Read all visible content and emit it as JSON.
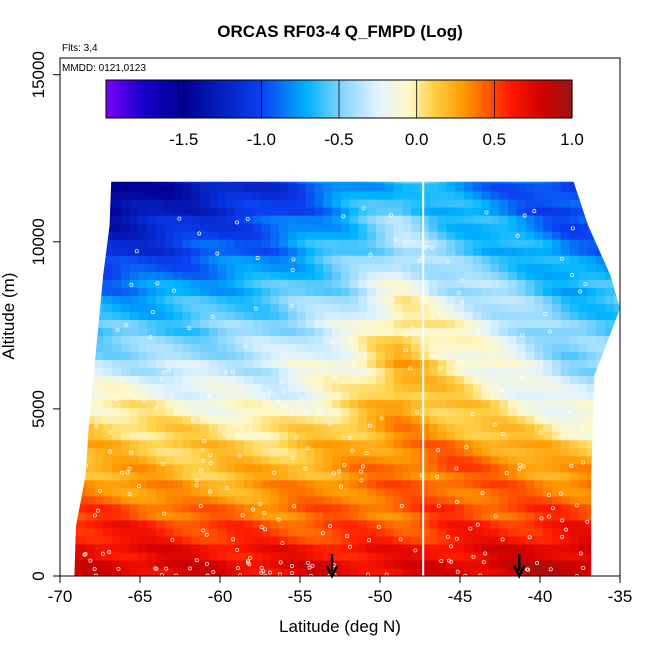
{
  "chart_data": {
    "type": "heatmap",
    "title": "ORCAS RF03-4 Q_FMPD (Log)",
    "subtitle_flights": "Flts: 3,4",
    "subtitle_dates": "MMDD: 0121,0123",
    "xlabel": "Latitude (deg N)",
    "ylabel": "Altitude (m)",
    "xlim": [
      -70,
      -35
    ],
    "ylim": [
      0,
      15500
    ],
    "x_ticks": [
      -70,
      -65,
      -60,
      -55,
      -50,
      -45,
      -40,
      -35
    ],
    "y_ticks": [
      0,
      5000,
      10000,
      15000
    ],
    "grid": false,
    "colorbar": {
      "range": [
        -2.0,
        1.0
      ],
      "ticks": [
        -1.5,
        -1.0,
        -0.5,
        0.0,
        0.5,
        1.0
      ],
      "tick_labels": [
        "-1.5",
        "-1.0",
        "-0.5",
        "0.0",
        "0.5",
        "1.0"
      ],
      "stops": [
        {
          "v": -2.0,
          "color": "#7a00ff"
        },
        {
          "v": -1.75,
          "color": "#1400c8"
        },
        {
          "v": -1.5,
          "color": "#000090"
        },
        {
          "v": -1.0,
          "color": "#0a40f0"
        },
        {
          "v": -0.7,
          "color": "#00b4ff"
        },
        {
          "v": -0.5,
          "color": "#7cd2ff"
        },
        {
          "v": -0.25,
          "color": "#e2f3ff"
        },
        {
          "v": -0.05,
          "color": "#fff9c8"
        },
        {
          "v": 0.1,
          "color": "#ffd24a"
        },
        {
          "v": 0.3,
          "color": "#ff9a00"
        },
        {
          "v": 0.6,
          "color": "#ff1a00"
        },
        {
          "v": 0.8,
          "color": "#d40000"
        },
        {
          "v": 1.0,
          "color": "#9a1414"
        }
      ]
    },
    "profile_bins": {
      "altitude_edges": [
        0,
        1000,
        2000,
        3000,
        4000,
        5000,
        6000,
        7000,
        8000,
        9000,
        10000,
        11000,
        12000
      ],
      "latitude_edges": [
        -69,
        -64,
        -59,
        -54,
        -50,
        -47.3,
        -44,
        -40,
        -36.5
      ],
      "values": [
        [
          0.75,
          0.75,
          0.7,
          0.72,
          0.7,
          0.75,
          0.8,
          0.85
        ],
        [
          0.6,
          0.5,
          0.45,
          0.45,
          0.45,
          0.55,
          0.55,
          0.6
        ],
        [
          0.35,
          0.25,
          0.3,
          0.4,
          0.4,
          0.45,
          0.4,
          0.4
        ],
        [
          0.2,
          0.15,
          0.15,
          0.25,
          0.4,
          0.45,
          0.35,
          0.2
        ],
        [
          0.1,
          0.05,
          0.0,
          0.15,
          0.3,
          0.2,
          0.1,
          -0.05
        ],
        [
          -0.1,
          -0.2,
          -0.25,
          -0.05,
          0.25,
          0.1,
          -0.1,
          -0.3
        ],
        [
          -0.4,
          -0.4,
          -0.3,
          -0.1,
          0.2,
          0.0,
          -0.2,
          -0.45
        ],
        [
          -0.6,
          -0.55,
          -0.45,
          -0.25,
          0.1,
          -0.1,
          -0.3,
          -0.55
        ],
        [
          -0.8,
          -0.7,
          -0.6,
          -0.4,
          -0.1,
          -0.3,
          -0.45,
          -0.65
        ],
        [
          -1.1,
          -0.95,
          -0.8,
          -0.55,
          -0.3,
          -0.5,
          -0.6,
          -0.8
        ],
        [
          -1.3,
          -1.1,
          -0.95,
          -0.65,
          -0.4,
          -0.6,
          -0.75,
          -0.95
        ],
        [
          -1.55,
          -1.3,
          -1.1,
          -0.8,
          -0.6,
          -0.75,
          -0.9,
          -1.05
        ]
      ]
    },
    "vertical_line_latitude": -47.3,
    "arrows": [
      {
        "latitude": -53,
        "direction": "down"
      },
      {
        "latitude": -41.3,
        "direction": "down"
      }
    ]
  }
}
